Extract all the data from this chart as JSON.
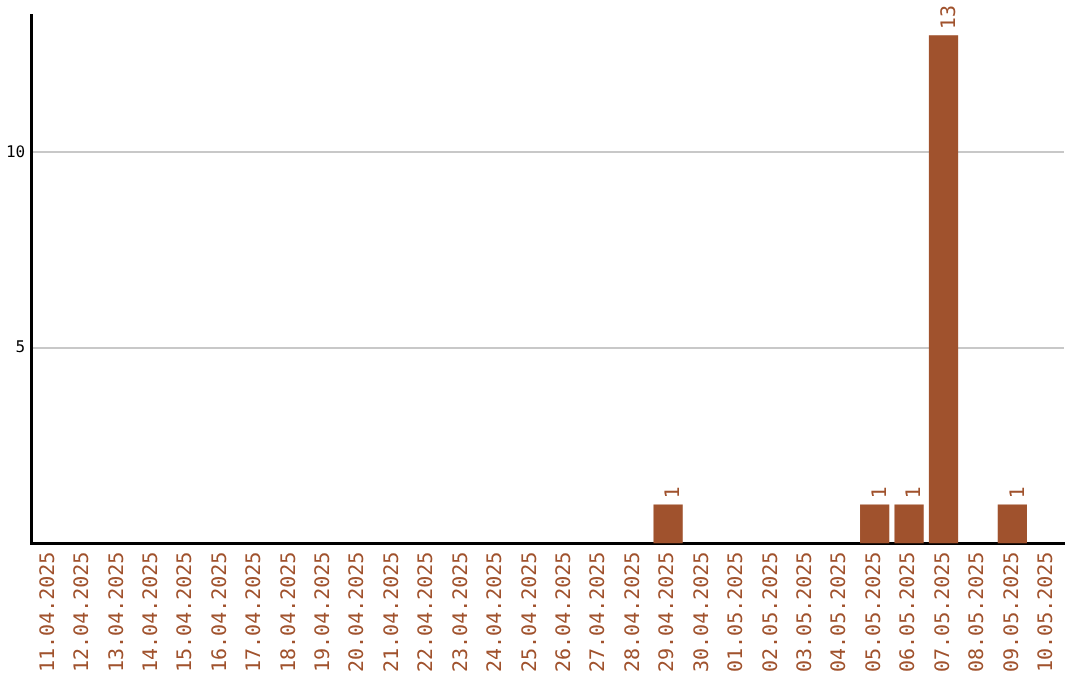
{
  "chart_data": {
    "type": "bar",
    "categories": [
      "11.04.2025",
      "12.04.2025",
      "13.04.2025",
      "14.04.2025",
      "15.04.2025",
      "16.04.2025",
      "17.04.2025",
      "18.04.2025",
      "19.04.2025",
      "20.04.2025",
      "21.04.2025",
      "22.04.2025",
      "23.04.2025",
      "24.04.2025",
      "25.04.2025",
      "26.04.2025",
      "27.04.2025",
      "28.04.2025",
      "29.04.2025",
      "30.04.2025",
      "01.05.2025",
      "02.05.2025",
      "03.05.2025",
      "04.05.2025",
      "05.05.2025",
      "06.05.2025",
      "07.05.2025",
      "08.05.2025",
      "09.05.2025",
      "10.05.2025"
    ],
    "values": [
      0,
      0,
      0,
      0,
      0,
      0,
      0,
      0,
      0,
      0,
      0,
      0,
      0,
      0,
      0,
      0,
      0,
      0,
      1,
      0,
      0,
      0,
      0,
      0,
      1,
      1,
      13,
      0,
      1,
      0
    ],
    "value_labels": [
      null,
      null,
      null,
      null,
      null,
      null,
      null,
      null,
      null,
      null,
      null,
      null,
      null,
      null,
      null,
      null,
      null,
      null,
      "1",
      null,
      null,
      null,
      null,
      null,
      "1",
      "1",
      "13",
      null,
      "1",
      null
    ],
    "color": "#a0522d",
    "ylim": [
      0,
      13.5
    ],
    "yticks": [
      5,
      10
    ],
    "grid": "y",
    "legend": false
  }
}
